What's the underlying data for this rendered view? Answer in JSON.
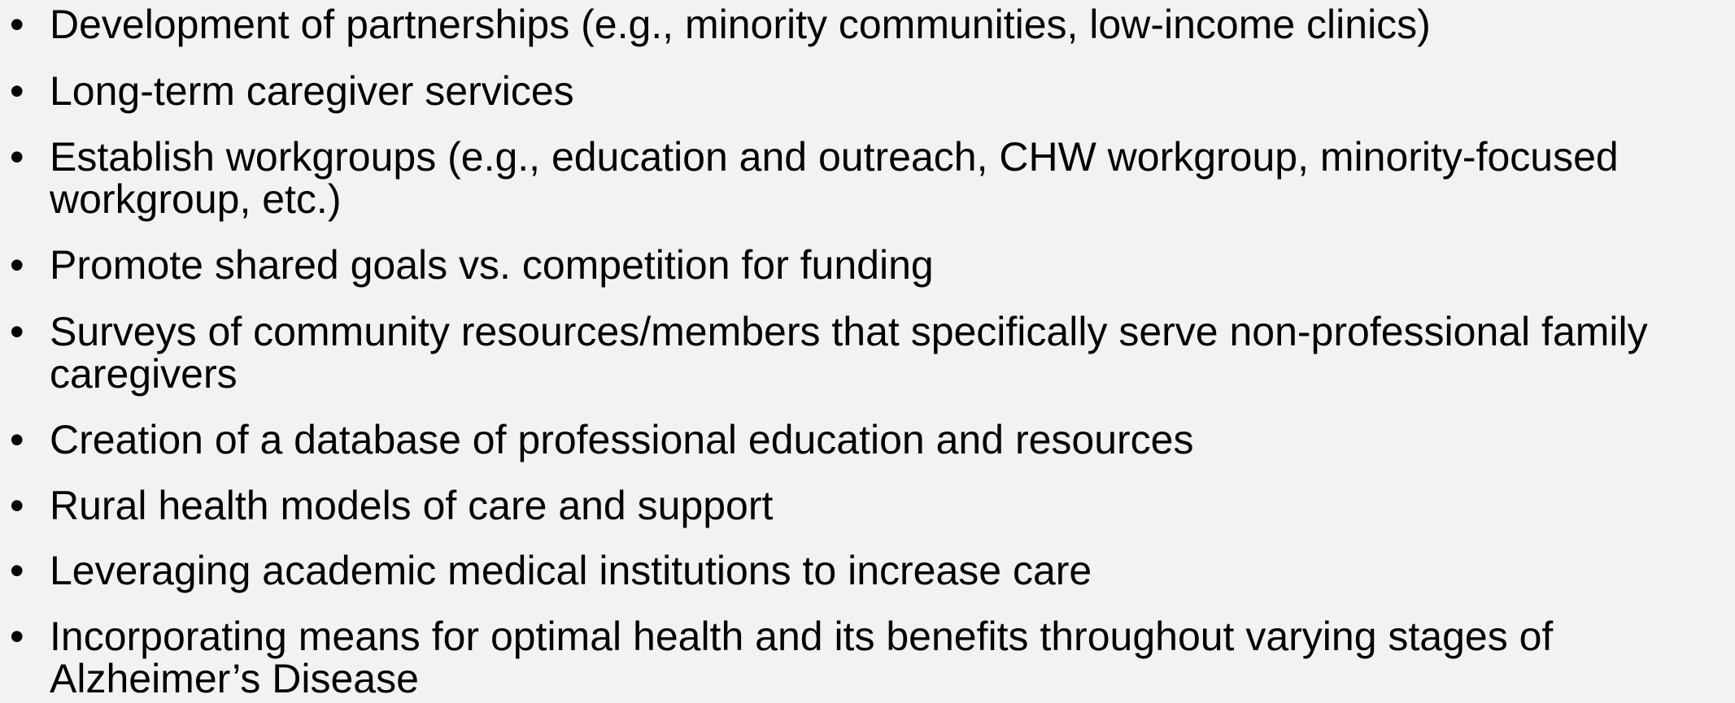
{
  "list": {
    "items": [
      "Development of partnerships (e.g., minority communities, low-income clinics)",
      "Long-term caregiver services",
      "Establish workgroups (e.g., education and outreach, CHW workgroup, minority-focused workgroup, etc.)",
      "Promote shared goals vs. competition for funding",
      "Surveys of community resources/members that specifically serve non-professional family caregivers",
      "Creation of a database of professional education and resources",
      "Rural health models of care and support",
      "Leveraging academic medical institutions to increase care",
      "Incorporating means for optimal health and its benefits throughout varying stages of Alzheimer’s Disease"
    ]
  }
}
